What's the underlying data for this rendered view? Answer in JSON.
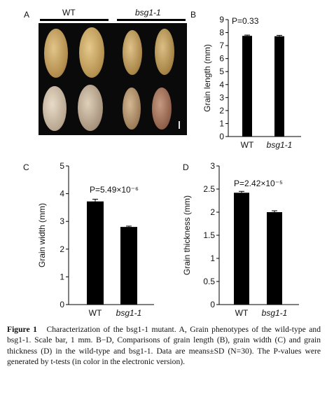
{
  "panel_labels": {
    "a": "A",
    "b": "B",
    "c": "C",
    "d": "D"
  },
  "photo": {
    "group_wt": "WT",
    "group_mut": "bsg1-1",
    "background": "#0a0a0a",
    "grain_color_top": "#c9a56a",
    "grain_color_bottom": "#b08a6a"
  },
  "chart_data": [
    {
      "panel": "B",
      "type": "bar",
      "categories": [
        "WT",
        "bsg1-1"
      ],
      "values": [
        7.75,
        7.72
      ],
      "errors": [
        0.06,
        0.07
      ],
      "ylabel": "Grain length (mm)",
      "ylim": [
        0,
        9
      ],
      "yticks": [
        "0",
        "1",
        "2",
        "3",
        "4",
        "5",
        "6",
        "7",
        "8",
        "9"
      ],
      "annotation": "P=0.33",
      "bar_color": "#000000"
    },
    {
      "panel": "C",
      "type": "bar",
      "categories": [
        "WT",
        "bsg1-1"
      ],
      "values": [
        3.72,
        2.8
      ],
      "errors": [
        0.08,
        0.03
      ],
      "ylabel": "Grain width (mm)",
      "ylim": [
        0,
        5
      ],
      "yticks": [
        "0",
        "1",
        "2",
        "3",
        "4",
        "5"
      ],
      "annotation": "P=5.49×10⁻⁶",
      "bar_color": "#000000"
    },
    {
      "panel": "D",
      "type": "bar",
      "categories": [
        "WT",
        "bsg1-1"
      ],
      "values": [
        2.42,
        2.0
      ],
      "errors": [
        0.03,
        0.03
      ],
      "ylabel": "Grain thickness (mm)",
      "ylim": [
        0,
        3
      ],
      "yticks": [
        "0",
        "0.5",
        "1",
        "1.5",
        "2",
        "2.5",
        "3"
      ],
      "annotation": "P=2.42×10⁻⁵",
      "bar_color": "#000000"
    }
  ],
  "caption": {
    "lead": "Figure 1",
    "text": "Characterization of the bsg1-1 mutant. A, Grain phenotypes of the wild-type and bsg1-1. Scale bar, 1 mm. B−D, Comparisons of grain length (B), grain width (C) and grain thickness (D) in the wild-type and bsg1-1. Data are means±SD (N=30). The P-values were generated by t-tests (in color in the electronic version)."
  }
}
